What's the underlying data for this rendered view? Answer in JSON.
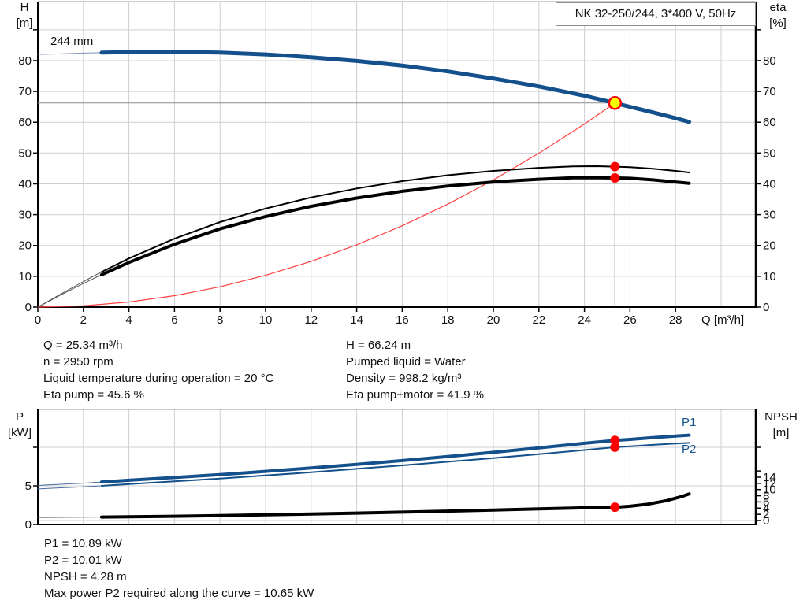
{
  "title_box": "NK 32-250/244, 3*400 V, 50Hz",
  "colors": {
    "curve_blue": "#14508c",
    "curve_blue_thin": "#7d92b0",
    "curve_black": "#000000",
    "curve_thin_gray": "#555555",
    "curve_red": "#ff4040",
    "marker_red": "#ff0000",
    "marker_yellow": "#ffff00",
    "grid": "#cdd0d4",
    "guide_gray": "#8c8c8c",
    "frame_top": "#9a9a9a"
  },
  "top_chart": {
    "axis_left_letter": "H",
    "axis_left_unit": "[m]",
    "axis_right_letter": "eta",
    "axis_right_unit": "[%]",
    "x_axis_label": "Q [m³/h]",
    "impeller": "244 mm"
  },
  "bottom_chart": {
    "axis_left_letter": "P",
    "axis_left_unit": "[kW]",
    "axis_right_letter": "NPSH",
    "axis_right_unit": "[m]",
    "p1_label": "P1",
    "p2_label": "P2"
  },
  "info": {
    "top_left": [
      "Q = 25.34 m³/h",
      "n = 2950 rpm",
      "Liquid temperature during operation = 20 °C",
      "Eta pump = 45.6 %"
    ],
    "top_right": [
      "H = 66.24 m",
      "Pumped liquid = Water",
      "Density = 998.2 kg/m³",
      "Eta pump+motor = 41.9 %"
    ],
    "bottom": [
      "P1 = 10.89 kW",
      "P2 = 10.01 kW",
      "NPSH = 4.28 m",
      "Max power P2 required along the curve = 10.65 kW"
    ]
  },
  "chart_data": [
    {
      "type": "line",
      "title": "NK 32-250/244, 3*400 V, 50Hz",
      "xlabel": "Q [m³/h]",
      "ylabel": "H [m]",
      "y2label": "eta [%]",
      "xlim": [
        0,
        31.5
      ],
      "ylim": [
        0,
        99.2
      ],
      "y2lim": [
        0,
        99.2
      ],
      "grid": true,
      "xticks": [
        0,
        2,
        4,
        6,
        8,
        10,
        12,
        14,
        16,
        18,
        20,
        22,
        24,
        26,
        28
      ],
      "yticks": [
        0,
        10,
        20,
        30,
        40,
        50,
        60,
        70,
        80
      ],
      "yticks_unlabeled": [
        90
      ],
      "y2ticks": [
        0,
        10,
        20,
        30,
        40,
        50,
        60,
        70,
        80
      ],
      "y2ticks_unlabeled": [
        90
      ],
      "grid_x": [
        2,
        4,
        6,
        8,
        10,
        12,
        14,
        16,
        18,
        20,
        22,
        24,
        26,
        28,
        30
      ],
      "grid_y": [
        10,
        20,
        30,
        40,
        50,
        60,
        70,
        80,
        90
      ],
      "duty_point": {
        "q": 25.34,
        "h": 66.24,
        "eta_pump": 45.6,
        "eta_pump_motor": 41.9
      },
      "series": [
        {
          "name": "duty-guide-horizontal",
          "axis": "y",
          "color": "#8c8c8c",
          "width": 1,
          "points": [
            [
              0,
              66.24
            ],
            [
              25.34,
              66.24
            ]
          ]
        },
        {
          "name": "duty-guide-vertical",
          "axis": "y",
          "color": "#5a5a5a",
          "width": 1,
          "points": [
            [
              25.34,
              66.24
            ],
            [
              25.34,
              0
            ]
          ]
        },
        {
          "name": "affinity-parabola",
          "axis": "y",
          "color": "#ff4040",
          "width": 1.2,
          "points": [
            [
              0,
              0
            ],
            [
              2,
              0.41
            ],
            [
              4,
              1.65
            ],
            [
              6,
              3.71
            ],
            [
              8,
              6.6
            ],
            [
              10,
              10.32
            ],
            [
              12,
              14.86
            ],
            [
              14,
              20.22
            ],
            [
              16,
              26.41
            ],
            [
              18,
              33.42
            ],
            [
              20,
              41.26
            ],
            [
              22,
              49.93
            ],
            [
              24,
              59.42
            ],
            [
              25.34,
              66.24
            ]
          ]
        },
        {
          "name": "head-curve-244mm",
          "axis": "y",
          "color": "#14508c",
          "width": 5,
          "thin_until": 2.8,
          "thin_color": "#7d92b0",
          "points": [
            [
              0,
              82.0
            ],
            [
              1,
              82.2
            ],
            [
              2,
              82.45
            ],
            [
              2.8,
              82.6
            ],
            [
              4,
              82.75
            ],
            [
              6,
              82.85
            ],
            [
              8,
              82.6
            ],
            [
              10,
              82.0
            ],
            [
              12,
              81.1
            ],
            [
              14,
              79.9
            ],
            [
              16,
              78.4
            ],
            [
              18,
              76.5
            ],
            [
              20,
              74.2
            ],
            [
              22,
              71.6
            ],
            [
              24,
              68.6
            ],
            [
              25.34,
              66.24
            ],
            [
              26,
              65.0
            ],
            [
              27,
              63.2
            ],
            [
              28,
              61.3
            ],
            [
              28.6,
              60.1
            ]
          ]
        },
        {
          "name": "eta-pump-curve",
          "axis": "y2",
          "color": "#000000",
          "width": 2,
          "thin_until": 2.8,
          "thin_color": "#555555",
          "points": [
            [
              0,
              0
            ],
            [
              1,
              4.2
            ],
            [
              2,
              8.3
            ],
            [
              2.8,
              11.4
            ],
            [
              4,
              15.8
            ],
            [
              6,
              22.2
            ],
            [
              8,
              27.6
            ],
            [
              10,
              32.0
            ],
            [
              12,
              35.6
            ],
            [
              14,
              38.5
            ],
            [
              16,
              40.9
            ],
            [
              18,
              42.8
            ],
            [
              20,
              44.2
            ],
            [
              22,
              45.2
            ],
            [
              23.5,
              45.7
            ],
            [
              24.5,
              45.75
            ],
            [
              25.34,
              45.6
            ],
            [
              26,
              45.4
            ],
            [
              27,
              44.9
            ],
            [
              28,
              44.2
            ],
            [
              28.6,
              43.7
            ]
          ]
        },
        {
          "name": "eta-pump-motor-curve",
          "axis": "y2",
          "color": "#000000",
          "width": 4,
          "thin_until": 2.8,
          "thin_color": "#555555",
          "points": [
            [
              0,
              0
            ],
            [
              1,
              3.9
            ],
            [
              2,
              7.7
            ],
            [
              2.8,
              10.5
            ],
            [
              4,
              14.5
            ],
            [
              6,
              20.4
            ],
            [
              8,
              25.4
            ],
            [
              10,
              29.4
            ],
            [
              12,
              32.7
            ],
            [
              14,
              35.4
            ],
            [
              16,
              37.6
            ],
            [
              18,
              39.3
            ],
            [
              20,
              40.6
            ],
            [
              22,
              41.5
            ],
            [
              23.5,
              41.95
            ],
            [
              24.5,
              42.0
            ],
            [
              25.34,
              41.9
            ],
            [
              26,
              41.8
            ],
            [
              27,
              41.3
            ],
            [
              28,
              40.6
            ],
            [
              28.6,
              40.2
            ]
          ]
        }
      ],
      "markers": [
        {
          "name": "duty-point-marker",
          "axis": "y",
          "x": 25.34,
          "y": 66.24,
          "r": 7.5,
          "fill": "#ffff00",
          "stroke": "#ff0000",
          "stroke_width": 2.5
        },
        {
          "name": "eta-pump-point",
          "axis": "y2",
          "x": 25.34,
          "y": 45.6,
          "r": 6,
          "fill": "#ff0000"
        },
        {
          "name": "eta-pump-motor-point",
          "axis": "y2",
          "x": 25.34,
          "y": 41.9,
          "r": 6,
          "fill": "#ff0000"
        }
      ]
    },
    {
      "type": "line",
      "title": "",
      "xlabel": "",
      "ylabel": "P [kW]",
      "y2label": "NPSH [m]",
      "xlim": [
        0,
        31.5
      ],
      "ylim": [
        0,
        14.9
      ],
      "y2lim": [
        0,
        37
      ],
      "grid": true,
      "xticks": [],
      "yticks": [
        0,
        5
      ],
      "yticks_unlabeled": [
        10
      ],
      "y2ticks": [
        0,
        2,
        4,
        6,
        8,
        10,
        12,
        14
      ],
      "y2ticks_unlabeled": [
        16
      ],
      "y2_extra_tick_at_y1": [
        10
      ],
      "grid_x": [
        2,
        4,
        6,
        8,
        10,
        12,
        14,
        16,
        18,
        20,
        22,
        24,
        26,
        28,
        30
      ],
      "grid_y": [
        5,
        10
      ],
      "grid_y2": [
        0
      ],
      "duty_point": {
        "q": 25.34,
        "p1_kw": 10.89,
        "p2_kw": 10.01,
        "npsh_m": 4.28,
        "max_p2_kw": 10.65
      },
      "series": [
        {
          "name": "p1-curve",
          "axis": "y",
          "color": "#14508c",
          "width": 4,
          "thin_until": 2.8,
          "thin_color": "#48699c",
          "points": [
            [
              0,
              5.05
            ],
            [
              1,
              5.2
            ],
            [
              2,
              5.35
            ],
            [
              2.8,
              5.5
            ],
            [
              4,
              5.72
            ],
            [
              6,
              6.08
            ],
            [
              8,
              6.46
            ],
            [
              10,
              6.88
            ],
            [
              12,
              7.32
            ],
            [
              14,
              7.78
            ],
            [
              16,
              8.28
            ],
            [
              18,
              8.8
            ],
            [
              20,
              9.35
            ],
            [
              22,
              9.92
            ],
            [
              24,
              10.52
            ],
            [
              25.34,
              10.89
            ],
            [
              26,
              11.02
            ],
            [
              27,
              11.25
            ],
            [
              28,
              11.45
            ],
            [
              28.6,
              11.57
            ]
          ]
        },
        {
          "name": "p2-curve",
          "axis": "y",
          "color": "#14508c",
          "width": 2,
          "thin_until": 2.8,
          "thin_color": "#48699c",
          "points": [
            [
              0,
              4.6
            ],
            [
              1,
              4.74
            ],
            [
              2,
              4.88
            ],
            [
              2.8,
              5.0
            ],
            [
              4,
              5.22
            ],
            [
              6,
              5.58
            ],
            [
              8,
              5.95
            ],
            [
              10,
              6.35
            ],
            [
              12,
              6.76
            ],
            [
              14,
              7.2
            ],
            [
              16,
              7.65
            ],
            [
              18,
              8.12
            ],
            [
              20,
              8.6
            ],
            [
              22,
              9.1
            ],
            [
              24,
              9.64
            ],
            [
              25.34,
              10.01
            ],
            [
              26,
              10.13
            ],
            [
              27,
              10.32
            ],
            [
              28,
              10.48
            ],
            [
              28.6,
              10.57
            ]
          ]
        },
        {
          "name": "npsh-curve",
          "axis": "y2",
          "color": "#000000",
          "width": 4,
          "thin_until": 2.8,
          "thin_color": "#555555",
          "points": [
            [
              0,
              1.0
            ],
            [
              2,
              1.08
            ],
            [
              2.8,
              1.12
            ],
            [
              4,
              1.22
            ],
            [
              6,
              1.38
            ],
            [
              8,
              1.58
            ],
            [
              10,
              1.82
            ],
            [
              12,
              2.08
            ],
            [
              14,
              2.38
            ],
            [
              16,
              2.7
            ],
            [
              18,
              3.02
            ],
            [
              20,
              3.38
            ],
            [
              22,
              3.76
            ],
            [
              24,
              4.1
            ],
            [
              25.34,
              4.28
            ],
            [
              26,
              4.6
            ],
            [
              26.8,
              5.3
            ],
            [
              27.6,
              6.4
            ],
            [
              28.3,
              7.8
            ],
            [
              28.6,
              8.6
            ]
          ]
        }
      ],
      "markers": [
        {
          "name": "p1-point",
          "axis": "y",
          "x": 25.34,
          "y": 10.89,
          "r": 6,
          "fill": "#ff0000"
        },
        {
          "name": "p2-point",
          "axis": "y",
          "x": 25.34,
          "y": 10.01,
          "r": 6,
          "fill": "#ff0000"
        },
        {
          "name": "npsh-point",
          "axis": "y2",
          "x": 25.34,
          "y": 4.28,
          "r": 6,
          "fill": "#ff0000"
        }
      ]
    }
  ]
}
